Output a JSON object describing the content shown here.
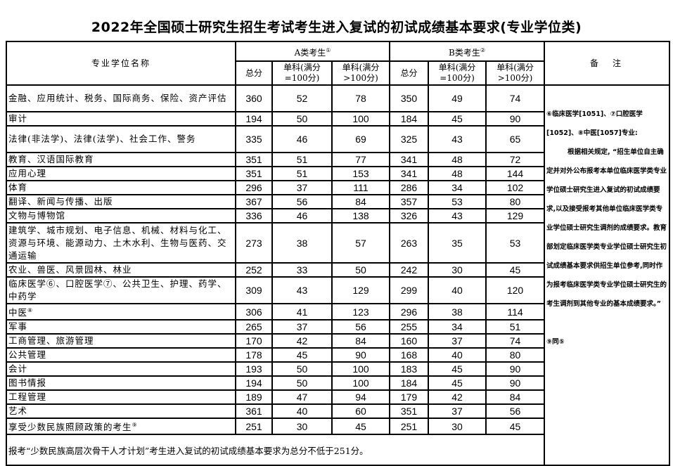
{
  "title": "2022年全国硕士研究生招生考试考生进入复试的初试成绩基本要求(专业学位类)",
  "header": {
    "name_col": "专业学位名称",
    "group_a": "A类考生",
    "group_a_mark": "①",
    "group_b": "B类考生",
    "group_b_mark": "②",
    "total": "总分",
    "single_100": "单科(满分=100分)",
    "single_gt100": "单科(满分>100分)",
    "notes": "备　注"
  },
  "rows": [
    {
      "name": "金融、应用统计、税务、国际商务、保险、资产评估",
      "mark": "",
      "a": [
        360,
        52,
        78
      ],
      "b": [
        350,
        49,
        74
      ]
    },
    {
      "name": "审计",
      "mark": "",
      "a": [
        194,
        50,
        100
      ],
      "b": [
        184,
        45,
        90
      ]
    },
    {
      "name": "法律(非法学)、法律(法学)、社会工作、警务",
      "mark": "",
      "a": [
        335,
        46,
        69
      ],
      "b": [
        325,
        43,
        65
      ]
    },
    {
      "name": "教育、汉语国际教育",
      "mark": "",
      "a": [
        351,
        51,
        77
      ],
      "b": [
        341,
        48,
        72
      ]
    },
    {
      "name": "应用心理",
      "mark": "",
      "a": [
        351,
        51,
        153
      ],
      "b": [
        341,
        48,
        144
      ]
    },
    {
      "name": "体育",
      "mark": "",
      "a": [
        296,
        37,
        111
      ],
      "b": [
        286,
        34,
        102
      ]
    },
    {
      "name": "翻译、新闻与传播、出版",
      "mark": "",
      "a": [
        367,
        56,
        84
      ],
      "b": [
        357,
        53,
        80
      ]
    },
    {
      "name": "文物与博物馆",
      "mark": "",
      "a": [
        336,
        46,
        138
      ],
      "b": [
        326,
        43,
        129
      ]
    },
    {
      "name": "建筑学、城市规划、电子信息、机械、材料与化工、资源与环境、能源动力、土木水利、生物与医药、交通运输",
      "mark": "",
      "a": [
        273,
        38,
        57
      ],
      "b": [
        263,
        35,
        53
      ]
    },
    {
      "name": "农业、兽医、风景园林、林业",
      "mark": "",
      "a": [
        252,
        33,
        50
      ],
      "b": [
        242,
        30,
        45
      ]
    },
    {
      "name": "临床医学⑥、口腔医学⑦、公共卫生、护理、药学、中药学",
      "mark": "",
      "a": [
        309,
        43,
        129
      ],
      "b": [
        299,
        40,
        120
      ]
    },
    {
      "name": "中医",
      "mark": "⑧",
      "a": [
        306,
        41,
        123
      ],
      "b": [
        296,
        38,
        114
      ]
    },
    {
      "name": "军事",
      "mark": "",
      "a": [
        265,
        37,
        56
      ],
      "b": [
        255,
        34,
        51
      ]
    },
    {
      "name": "工商管理、旅游管理",
      "mark": "",
      "a": [
        170,
        42,
        84
      ],
      "b": [
        160,
        37,
        74
      ]
    },
    {
      "name": "公共管理",
      "mark": "",
      "a": [
        178,
        45,
        90
      ],
      "b": [
        168,
        40,
        80
      ]
    },
    {
      "name": "会计",
      "mark": "",
      "a": [
        193,
        50,
        100
      ],
      "b": [
        183,
        45,
        90
      ]
    },
    {
      "name": "图书情报",
      "mark": "",
      "a": [
        194,
        50,
        100
      ],
      "b": [
        184,
        45,
        90
      ]
    },
    {
      "name": "工程管理",
      "mark": "",
      "a": [
        189,
        47,
        94
      ],
      "b": [
        179,
        42,
        84
      ]
    },
    {
      "name": "艺术",
      "mark": "",
      "a": [
        361,
        40,
        60
      ],
      "b": [
        351,
        37,
        56
      ]
    },
    {
      "name": "享受少数民族照顾政策的考生",
      "mark": "⑨",
      "a": [
        251,
        30,
        45
      ],
      "b": [
        251,
        30,
        45
      ]
    }
  ],
  "footer": "报考“少数民族高层次骨干人才计划”考生进入复试的初试成绩基本要求为总分不低于251分。",
  "notes": {
    "p1": "⑥临床医学[1051]、⑦口腔医学[1052]、⑧中医[1057]专业:",
    "p2": "根据相关规定, “招生单位自主确定并对外公布报考本单位临床医学类专业学位硕士研究生进入复试的初试成绩要求,以及接受报考其他单位临床医学类专业学位硕士研究生调剂的成绩要求。教育部划定临床医学类专业学位硕士研究生初试成绩基本要求供招生单位参考,同时作为报考临床医学类专业学位硕士研究生的考生调剂到其他专业的基本成绩要求。”",
    "p3": "⑨同⑤"
  }
}
